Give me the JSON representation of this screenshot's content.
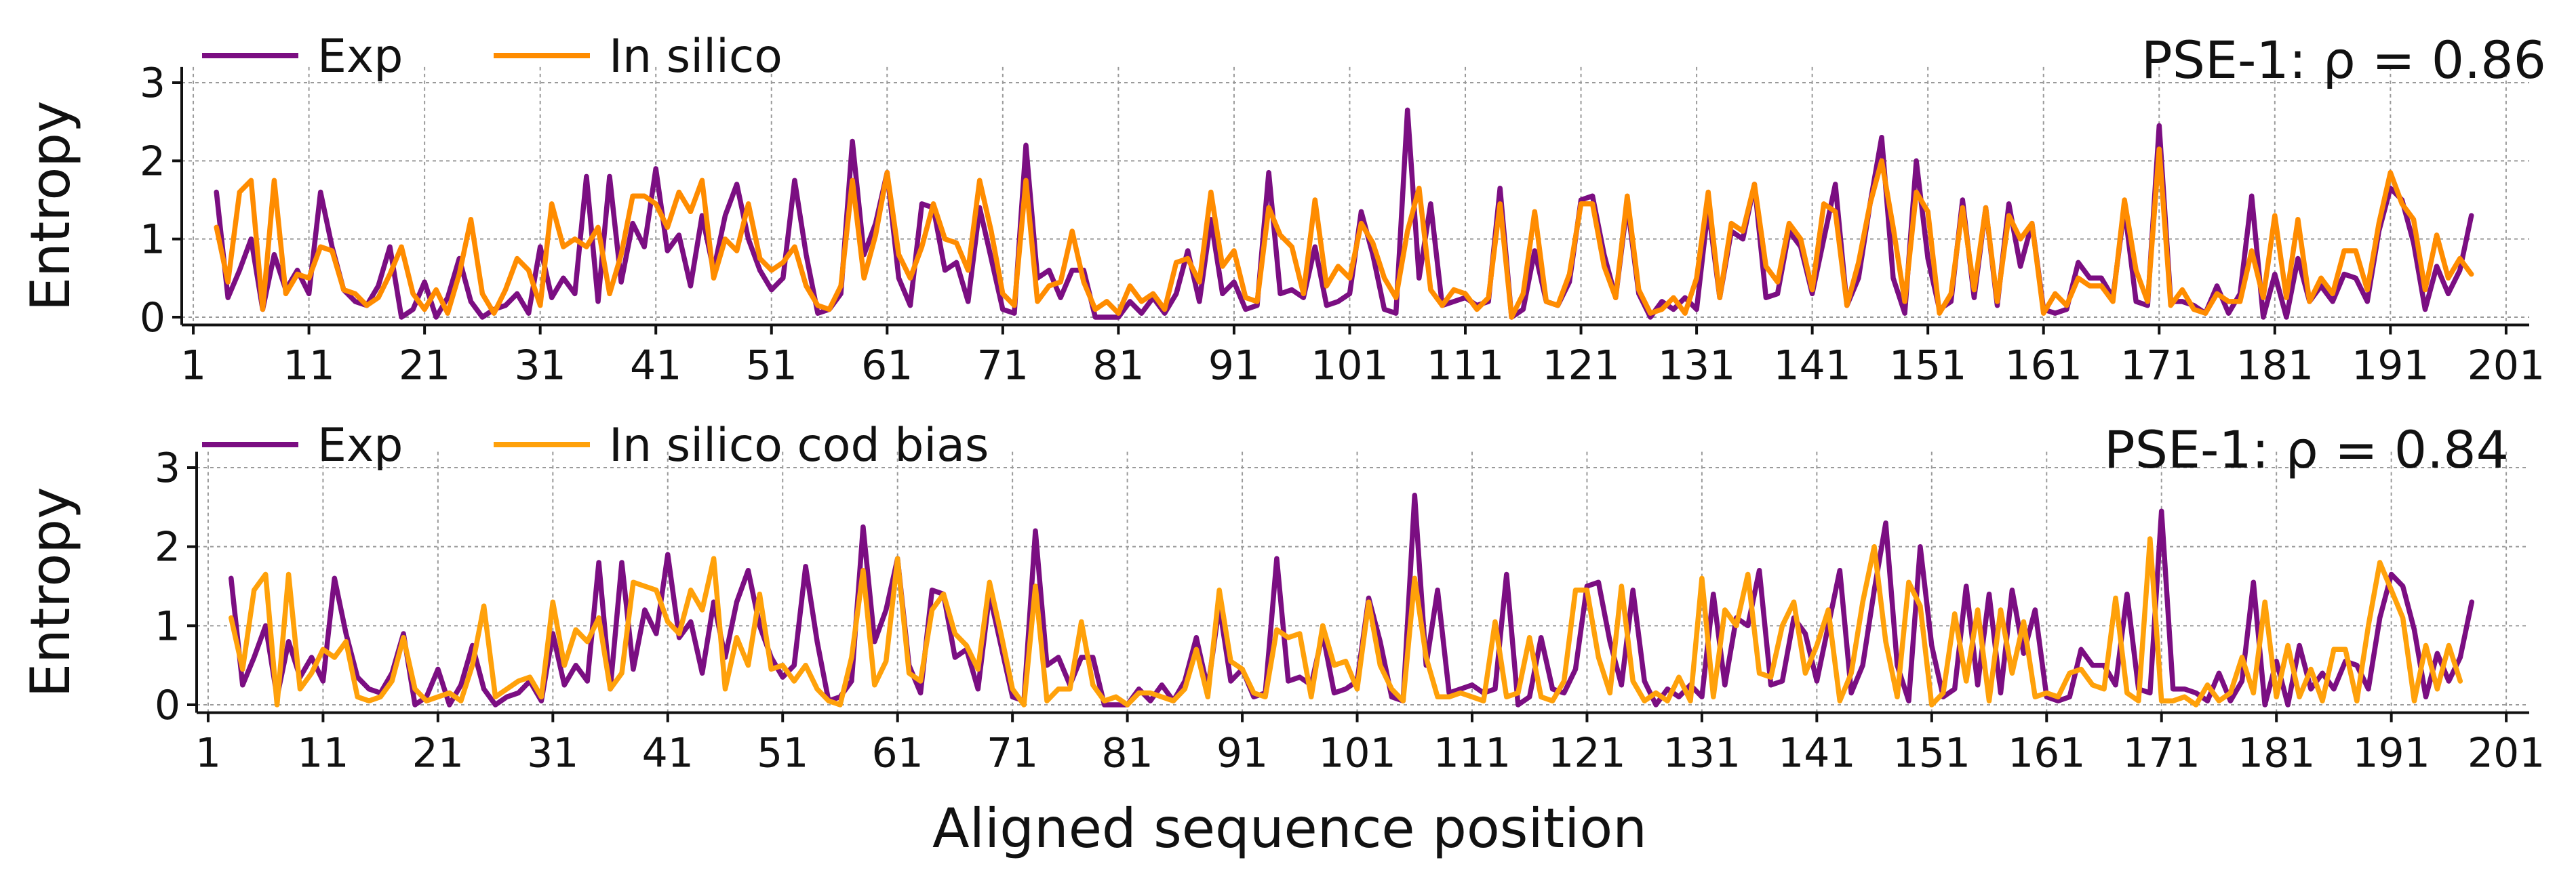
{
  "figure": {
    "xlabel": "Aligned sequence position"
  },
  "colors": {
    "exp": "#7b0e82",
    "in_silico": "#ff8c00",
    "in_silico_cod_bias": "#ffa10a"
  },
  "chart_data": [
    {
      "type": "line",
      "title": "",
      "xlabel": "",
      "ylabel": "Entropy",
      "annotation": "PSE-1: ρ = 0.86",
      "xlim": [
        0,
        203
      ],
      "ylim": [
        -0.1,
        3.2
      ],
      "xticks": [
        1,
        11,
        21,
        31,
        41,
        51,
        61,
        71,
        81,
        91,
        101,
        111,
        121,
        131,
        141,
        151,
        161,
        171,
        181,
        191,
        201
      ],
      "yticks": [
        0,
        1,
        2,
        3
      ],
      "grid": true,
      "legend": "top-left",
      "x_start": 3,
      "series": [
        {
          "name": "Exp",
          "color": "#7b0e82",
          "values": [
            1.6,
            0.25,
            0.6,
            1.0,
            0.1,
            0.8,
            0.35,
            0.6,
            0.3,
            1.6,
            0.9,
            0.35,
            0.2,
            0.15,
            0.4,
            0.9,
            0.0,
            0.1,
            0.45,
            0.0,
            0.25,
            0.75,
            0.2,
            0.0,
            0.1,
            0.15,
            0.3,
            0.05,
            0.9,
            0.25,
            0.5,
            0.3,
            1.8,
            0.2,
            1.8,
            0.45,
            1.2,
            0.9,
            1.9,
            0.85,
            1.05,
            0.4,
            1.3,
            0.6,
            1.3,
            1.7,
            1.0,
            0.6,
            0.35,
            0.5,
            1.75,
            0.8,
            0.05,
            0.1,
            0.3,
            2.25,
            0.8,
            1.2,
            1.85,
            0.5,
            0.15,
            1.45,
            1.4,
            0.6,
            0.7,
            0.2,
            1.4,
            0.75,
            0.1,
            0.05,
            2.2,
            0.5,
            0.6,
            0.25,
            0.6,
            0.6,
            0.0,
            0.0,
            0.0,
            0.2,
            0.05,
            0.25,
            0.05,
            0.3,
            0.85,
            0.2,
            1.25,
            0.3,
            0.45,
            0.1,
            0.15,
            1.85,
            0.3,
            0.35,
            0.25,
            0.9,
            0.15,
            0.2,
            0.3,
            1.35,
            0.8,
            0.1,
            0.05,
            2.65,
            0.5,
            1.45,
            0.15,
            0.2,
            0.25,
            0.15,
            0.2,
            1.65,
            0.0,
            0.1,
            0.85,
            0.2,
            0.15,
            0.45,
            1.5,
            1.55,
            0.8,
            0.25,
            1.45,
            0.3,
            0.0,
            0.2,
            0.1,
            0.25,
            0.1,
            1.4,
            0.25,
            1.1,
            1.0,
            1.7,
            0.25,
            0.3,
            1.1,
            0.9,
            0.3,
            1.0,
            1.7,
            0.15,
            0.5,
            1.45,
            2.3,
            0.5,
            0.05,
            2.0,
            0.75,
            0.1,
            0.2,
            1.5,
            0.25,
            1.4,
            0.15,
            1.45,
            0.65,
            1.2,
            0.1,
            0.05,
            0.1,
            0.7,
            0.5,
            0.5,
            0.25,
            1.4,
            0.2,
            0.15,
            2.45,
            0.2,
            0.2,
            0.15,
            0.05,
            0.4,
            0.05,
            0.3,
            1.55,
            0.0,
            0.55,
            0.0,
            0.75,
            0.2,
            0.4,
            0.2,
            0.55,
            0.5,
            0.2,
            1.1,
            1.65,
            1.5,
            0.95,
            0.1,
            0.65,
            0.3,
            0.6,
            1.3
          ]
        },
        {
          "name": "In silico",
          "color": "#ff8c00",
          "values": [
            1.15,
            0.45,
            1.6,
            1.75,
            0.1,
            1.75,
            0.3,
            0.55,
            0.5,
            0.9,
            0.85,
            0.35,
            0.3,
            0.15,
            0.25,
            0.55,
            0.9,
            0.3,
            0.1,
            0.35,
            0.05,
            0.55,
            1.25,
            0.3,
            0.05,
            0.35,
            0.75,
            0.6,
            0.15,
            1.45,
            0.9,
            1.0,
            0.9,
            1.15,
            0.3,
            0.8,
            1.55,
            1.55,
            1.45,
            1.15,
            1.6,
            1.35,
            1.75,
            0.5,
            1.0,
            0.85,
            1.45,
            0.75,
            0.6,
            0.7,
            0.9,
            0.4,
            0.15,
            0.1,
            0.4,
            1.75,
            0.5,
            1.05,
            1.85,
            0.8,
            0.5,
            0.9,
            1.45,
            1.0,
            0.95,
            0.6,
            1.75,
            1.1,
            0.3,
            0.15,
            1.75,
            0.2,
            0.4,
            0.45,
            1.1,
            0.45,
            0.1,
            0.2,
            0.05,
            0.4,
            0.2,
            0.3,
            0.1,
            0.7,
            0.75,
            0.45,
            1.6,
            0.65,
            0.85,
            0.25,
            0.2,
            1.4,
            1.05,
            0.9,
            0.3,
            1.5,
            0.4,
            0.65,
            0.5,
            1.2,
            0.95,
            0.5,
            0.25,
            1.1,
            1.65,
            0.35,
            0.15,
            0.35,
            0.3,
            0.1,
            0.25,
            1.45,
            0.0,
            0.3,
            1.35,
            0.2,
            0.15,
            0.55,
            1.45,
            1.45,
            0.65,
            0.25,
            1.55,
            0.35,
            0.05,
            0.1,
            0.25,
            0.05,
            0.5,
            1.6,
            0.25,
            1.2,
            1.1,
            1.7,
            0.65,
            0.45,
            1.2,
            1.0,
            0.35,
            1.45,
            1.35,
            0.15,
            0.7,
            1.45,
            2.0,
            1.15,
            0.2,
            1.6,
            1.35,
            0.05,
            0.3,
            1.4,
            0.35,
            1.4,
            0.2,
            1.3,
            1.0,
            1.2,
            0.05,
            0.3,
            0.15,
            0.5,
            0.4,
            0.4,
            0.2,
            1.5,
            0.6,
            0.2,
            2.15,
            0.15,
            0.35,
            0.1,
            0.05,
            0.3,
            0.2,
            0.2,
            0.85,
            0.25,
            1.3,
            0.25,
            1.25,
            0.2,
            0.5,
            0.3,
            0.85,
            0.85,
            0.35,
            1.2,
            1.85,
            1.45,
            1.25,
            0.35,
            1.05,
            0.5,
            0.75,
            0.55
          ]
        }
      ]
    },
    {
      "type": "line",
      "title": "",
      "xlabel": "",
      "ylabel": "Entropy",
      "annotation": "PSE-1: ρ = 0.84",
      "xlim": [
        0,
        203
      ],
      "ylim": [
        -0.1,
        3.2
      ],
      "xticks": [
        1,
        11,
        21,
        31,
        41,
        51,
        61,
        71,
        81,
        91,
        101,
        111,
        121,
        131,
        141,
        151,
        161,
        171,
        181,
        191,
        201
      ],
      "yticks": [
        0,
        1,
        2,
        3
      ],
      "grid": true,
      "legend": "top-left",
      "x_start": 3,
      "series": [
        {
          "name": "Exp",
          "color": "#7b0e82",
          "values": [
            1.6,
            0.25,
            0.6,
            1.0,
            0.1,
            0.8,
            0.35,
            0.6,
            0.3,
            1.6,
            0.9,
            0.35,
            0.2,
            0.15,
            0.4,
            0.9,
            0.0,
            0.1,
            0.45,
            0.0,
            0.25,
            0.75,
            0.2,
            0.0,
            0.1,
            0.15,
            0.3,
            0.05,
            0.9,
            0.25,
            0.5,
            0.3,
            1.8,
            0.2,
            1.8,
            0.45,
            1.2,
            0.9,
            1.9,
            0.85,
            1.05,
            0.4,
            1.3,
            0.6,
            1.3,
            1.7,
            1.0,
            0.6,
            0.35,
            0.5,
            1.75,
            0.8,
            0.05,
            0.1,
            0.3,
            2.25,
            0.8,
            1.2,
            1.85,
            0.5,
            0.15,
            1.45,
            1.4,
            0.6,
            0.7,
            0.2,
            1.4,
            0.75,
            0.1,
            0.05,
            2.2,
            0.5,
            0.6,
            0.25,
            0.6,
            0.6,
            0.0,
            0.0,
            0.0,
            0.2,
            0.05,
            0.25,
            0.05,
            0.3,
            0.85,
            0.2,
            1.25,
            0.3,
            0.45,
            0.1,
            0.15,
            1.85,
            0.3,
            0.35,
            0.25,
            0.9,
            0.15,
            0.2,
            0.3,
            1.35,
            0.8,
            0.1,
            0.05,
            2.65,
            0.5,
            1.45,
            0.15,
            0.2,
            0.25,
            0.15,
            0.2,
            1.65,
            0.0,
            0.1,
            0.85,
            0.2,
            0.15,
            0.45,
            1.5,
            1.55,
            0.8,
            0.25,
            1.45,
            0.3,
            0.0,
            0.2,
            0.1,
            0.25,
            0.1,
            1.4,
            0.25,
            1.1,
            1.0,
            1.7,
            0.25,
            0.3,
            1.1,
            0.9,
            0.3,
            1.0,
            1.7,
            0.15,
            0.5,
            1.45,
            2.3,
            0.5,
            0.05,
            2.0,
            0.75,
            0.1,
            0.2,
            1.5,
            0.25,
            1.4,
            0.15,
            1.45,
            0.65,
            1.2,
            0.1,
            0.05,
            0.1,
            0.7,
            0.5,
            0.5,
            0.25,
            1.4,
            0.2,
            0.15,
            2.45,
            0.2,
            0.2,
            0.15,
            0.05,
            0.4,
            0.05,
            0.3,
            1.55,
            0.0,
            0.55,
            0.0,
            0.75,
            0.2,
            0.4,
            0.2,
            0.55,
            0.5,
            0.2,
            1.1,
            1.65,
            1.5,
            0.95,
            0.1,
            0.65,
            0.3,
            0.6,
            1.3
          ]
        },
        {
          "name": "In silico cod bias",
          "color": "#ffa10a",
          "values": [
            1.1,
            0.45,
            1.45,
            1.65,
            0.0,
            1.65,
            0.2,
            0.4,
            0.7,
            0.6,
            0.8,
            0.1,
            0.05,
            0.1,
            0.3,
            0.85,
            0.2,
            0.05,
            0.1,
            0.15,
            0.05,
            0.5,
            1.25,
            0.1,
            0.2,
            0.3,
            0.35,
            0.1,
            1.3,
            0.5,
            0.95,
            0.8,
            1.1,
            0.2,
            0.4,
            1.55,
            1.5,
            1.45,
            1.05,
            0.9,
            1.45,
            1.2,
            1.85,
            0.2,
            0.85,
            0.5,
            1.4,
            0.45,
            0.5,
            0.3,
            0.5,
            0.2,
            0.05,
            0.0,
            0.6,
            1.7,
            0.25,
            0.55,
            1.85,
            0.4,
            0.3,
            1.2,
            1.4,
            0.9,
            0.75,
            0.45,
            1.55,
            0.9,
            0.2,
            0.0,
            1.5,
            0.05,
            0.2,
            0.2,
            1.05,
            0.25,
            0.05,
            0.1,
            0.0,
            0.15,
            0.15,
            0.1,
            0.05,
            0.2,
            0.7,
            0.1,
            1.45,
            0.55,
            0.45,
            0.15,
            0.1,
            0.95,
            0.85,
            0.9,
            0.1,
            1.0,
            0.5,
            0.55,
            0.2,
            1.3,
            0.5,
            0.2,
            0.05,
            1.6,
            0.6,
            0.1,
            0.1,
            0.15,
            0.1,
            0.05,
            1.05,
            0.1,
            0.15,
            0.85,
            0.1,
            0.05,
            0.3,
            1.45,
            1.45,
            0.6,
            0.15,
            1.5,
            0.3,
            0.05,
            0.15,
            0.05,
            0.35,
            0.05,
            1.6,
            0.1,
            1.2,
            1.0,
            1.65,
            0.4,
            0.35,
            1.0,
            1.3,
            0.4,
            0.75,
            1.2,
            0.05,
            0.4,
            1.3,
            2.0,
            0.8,
            0.1,
            1.55,
            1.25,
            0.0,
            0.15,
            1.15,
            0.3,
            1.2,
            0.05,
            1.2,
            0.4,
            1.05,
            0.1,
            0.15,
            0.1,
            0.4,
            0.45,
            0.25,
            0.2,
            1.35,
            0.15,
            0.05,
            2.1,
            0.05,
            0.05,
            0.1,
            0.0,
            0.25,
            0.05,
            0.15,
            0.6,
            0.15,
            1.3,
            0.1,
            0.75,
            0.1,
            0.45,
            0.05,
            0.7,
            0.7,
            0.05,
            1.0,
            1.8,
            1.45,
            1.1,
            0.05,
            0.75,
            0.2,
            0.75,
            0.3
          ]
        }
      ]
    }
  ]
}
